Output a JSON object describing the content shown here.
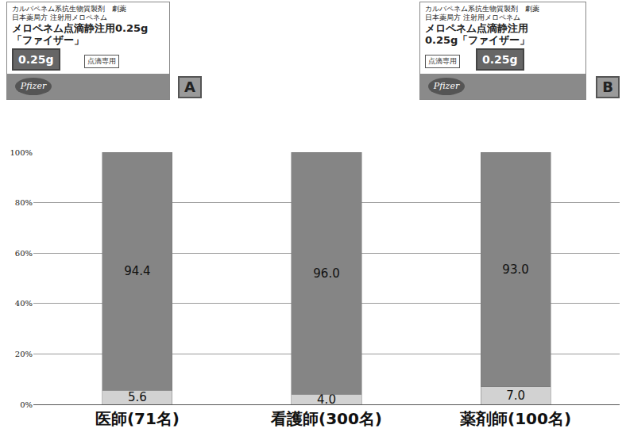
{
  "chart_data": {
    "type": "bar",
    "stacked": true,
    "data_labels": true,
    "grid": true,
    "categories": [
      "医師(71名)",
      "看護師(300名)",
      "薬剤師(100名)"
    ],
    "series": [
      {
        "color": "#d2d2d2",
        "values": [
          5.6,
          4.0,
          7.0
        ],
        "value_labels": [
          "5.6",
          "4.0",
          "7.0"
        ]
      },
      {
        "color": "#858585",
        "values": [
          94.4,
          96.0,
          93.0
        ],
        "value_labels": [
          "94.4",
          "96.0",
          "93.0"
        ]
      }
    ],
    "ylim": [
      0,
      100
    ],
    "yticks": [
      {
        "value": 0,
        "label": "0%"
      },
      {
        "value": 20,
        "label": "20%"
      },
      {
        "value": 40,
        "label": "40%"
      },
      {
        "value": 60,
        "label": "60%"
      },
      {
        "value": 80,
        "label": "80%"
      },
      {
        "value": 100,
        "label": "100%"
      }
    ]
  },
  "packages": [
    {
      "label": "A",
      "lines": [
        "カルバペネム系抗生物質製剤　劇薬",
        "日本薬局方 注射用メロペネム",
        "メロペネム点滴静注用0.25g",
        "「ファイザー」"
      ],
      "badge": "0.25g",
      "tag": "点滴専用",
      "logo": "Pfizer"
    },
    {
      "label": "B",
      "lines": [
        "カルバペネム系抗生物質製剤　劇薬",
        "日本薬局方 注射用メロペネム",
        "メロペネム点滴静注用",
        "0.25g「ファイザー」"
      ],
      "badge": "0.25g",
      "tag": "点滴専用",
      "logo": "Pfizer"
    }
  ]
}
